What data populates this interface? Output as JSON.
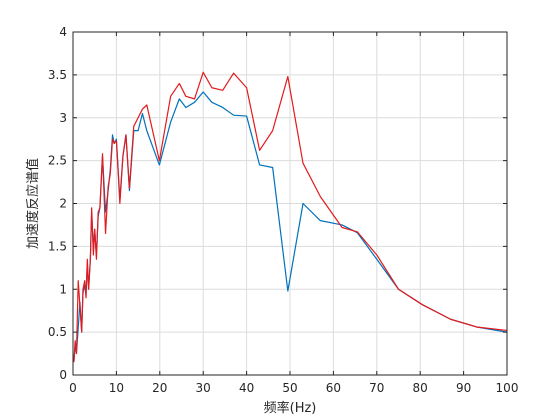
{
  "chart_data": {
    "type": "line",
    "title": "",
    "xlabel": "频率(Hz)",
    "ylabel": "加速度反应谱值",
    "xlim": [
      0,
      100
    ],
    "ylim": [
      0,
      4
    ],
    "xticks": [
      "0",
      "10",
      "20",
      "30",
      "40",
      "50",
      "60",
      "70",
      "80",
      "90",
      "100"
    ],
    "yticks": [
      "0",
      "0.5",
      "1",
      "1.5",
      "2",
      "2.5",
      "3",
      "3.5",
      "4"
    ],
    "grid": true,
    "series": [
      {
        "color": "#0072BD",
        "points": [
          [
            0.2,
            0.15
          ],
          [
            0.5,
            0.35
          ],
          [
            0.8,
            0.25
          ],
          [
            1.2,
            0.55
          ],
          [
            1.6,
            0.85
          ],
          [
            2.0,
            0.5
          ],
          [
            2.3,
            0.95
          ],
          [
            2.7,
            1.05
          ],
          [
            3.0,
            0.95
          ],
          [
            3.3,
            1.3
          ],
          [
            3.6,
            1.0
          ],
          [
            4.0,
            1.35
          ],
          [
            4.3,
            1.9
          ],
          [
            4.7,
            1.45
          ],
          [
            5.0,
            1.7
          ],
          [
            5.4,
            1.4
          ],
          [
            5.8,
            1.85
          ],
          [
            6.2,
            1.95
          ],
          [
            6.8,
            2.55
          ],
          [
            7.5,
            1.9
          ],
          [
            8.1,
            2.15
          ],
          [
            8.6,
            2.4
          ],
          [
            9.1,
            2.8
          ],
          [
            9.5,
            2.7
          ],
          [
            10.0,
            2.75
          ],
          [
            10.8,
            2.05
          ],
          [
            11.5,
            2.55
          ],
          [
            12.2,
            2.8
          ],
          [
            13.0,
            2.15
          ],
          [
            14.0,
            2.85
          ],
          [
            15.0,
            2.85
          ],
          [
            16.0,
            3.05
          ],
          [
            17.0,
            2.85
          ],
          [
            19.9,
            2.45
          ],
          [
            22.5,
            2.95
          ],
          [
            24.5,
            3.22
          ],
          [
            26.0,
            3.12
          ],
          [
            28.0,
            3.18
          ],
          [
            30.0,
            3.3
          ],
          [
            32.0,
            3.18
          ],
          [
            34.5,
            3.12
          ],
          [
            37.0,
            3.03
          ],
          [
            40.0,
            3.02
          ],
          [
            43.0,
            2.45
          ],
          [
            46.0,
            2.42
          ],
          [
            49.5,
            0.98
          ],
          [
            53.0,
            2.0
          ],
          [
            57.0,
            1.8
          ],
          [
            62.0,
            1.75
          ],
          [
            65.5,
            1.66
          ],
          [
            70.0,
            1.35
          ],
          [
            75.0,
            1.0
          ],
          [
            80.5,
            0.82
          ],
          [
            87.0,
            0.65
          ],
          [
            93.0,
            0.56
          ],
          [
            100.0,
            0.5
          ]
        ]
      },
      {
        "color": "#E41A1C",
        "points": [
          [
            0.2,
            0.15
          ],
          [
            0.5,
            0.4
          ],
          [
            0.8,
            0.25
          ],
          [
            1.2,
            1.1
          ],
          [
            1.6,
            0.8
          ],
          [
            2.0,
            0.5
          ],
          [
            2.3,
            1.0
          ],
          [
            2.7,
            1.1
          ],
          [
            3.0,
            0.9
          ],
          [
            3.3,
            1.35
          ],
          [
            3.6,
            1.0
          ],
          [
            4.0,
            1.35
          ],
          [
            4.3,
            1.95
          ],
          [
            4.7,
            1.4
          ],
          [
            5.0,
            1.7
          ],
          [
            5.4,
            1.35
          ],
          [
            5.8,
            1.9
          ],
          [
            6.2,
            1.95
          ],
          [
            6.8,
            2.58
          ],
          [
            7.5,
            1.65
          ],
          [
            8.1,
            2.2
          ],
          [
            8.6,
            2.35
          ],
          [
            9.1,
            2.75
          ],
          [
            9.5,
            2.7
          ],
          [
            10.0,
            2.73
          ],
          [
            10.8,
            2.0
          ],
          [
            11.5,
            2.55
          ],
          [
            12.2,
            2.8
          ],
          [
            13.0,
            2.18
          ],
          [
            14.0,
            2.9
          ],
          [
            15.0,
            3.0
          ],
          [
            16.0,
            3.1
          ],
          [
            17.0,
            3.15
          ],
          [
            19.9,
            2.5
          ],
          [
            22.5,
            3.25
          ],
          [
            24.5,
            3.4
          ],
          [
            26.0,
            3.25
          ],
          [
            28.0,
            3.22
          ],
          [
            30.0,
            3.53
          ],
          [
            32.0,
            3.35
          ],
          [
            34.5,
            3.32
          ],
          [
            37.0,
            3.52
          ],
          [
            40.0,
            3.35
          ],
          [
            43.0,
            2.62
          ],
          [
            46.0,
            2.85
          ],
          [
            49.5,
            3.48
          ],
          [
            53.0,
            2.47
          ],
          [
            57.0,
            2.08
          ],
          [
            62.0,
            1.72
          ],
          [
            65.5,
            1.67
          ],
          [
            70.0,
            1.4
          ],
          [
            75.0,
            1.0
          ],
          [
            80.5,
            0.82
          ],
          [
            87.0,
            0.65
          ],
          [
            93.0,
            0.56
          ],
          [
            100.0,
            0.52
          ]
        ]
      }
    ]
  }
}
